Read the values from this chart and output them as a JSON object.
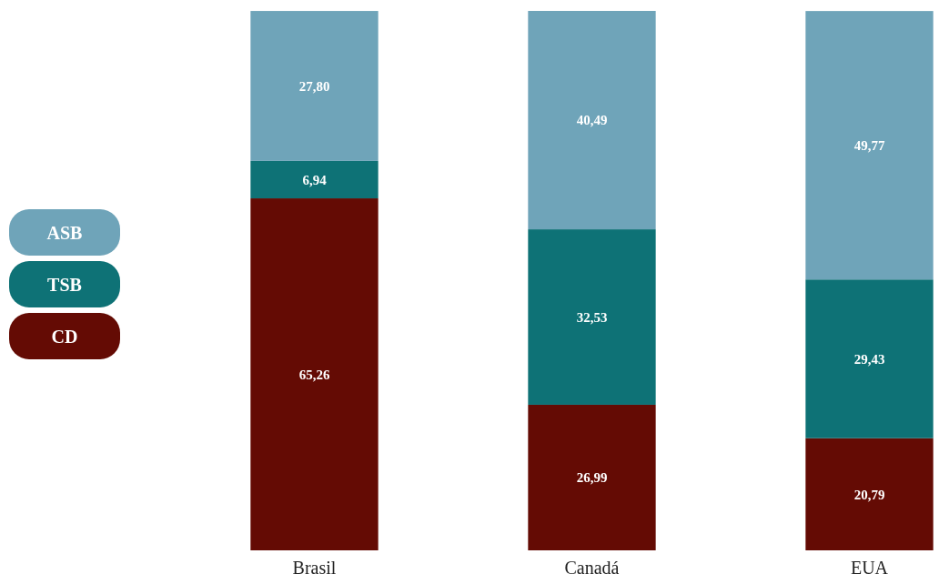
{
  "chart_data": {
    "type": "bar",
    "stacked": true,
    "categories": [
      "Brasil",
      "Canadá",
      "EUA"
    ],
    "ylim": [
      0,
      100.01
    ],
    "tick_labels": "x",
    "legend": "left",
    "series": [
      {
        "name": "CD",
        "color": "#640b04",
        "values": [
          65.26,
          26.99,
          20.79
        ],
        "value_labels": [
          "65,26",
          "26,99",
          "20,79"
        ]
      },
      {
        "name": "TSB",
        "color": "#0e7276",
        "values": [
          6.94,
          32.53,
          29.43
        ],
        "value_labels": [
          "6,94",
          "32,53",
          "29,43"
        ]
      },
      {
        "name": "ASB",
        "color": "#6fa4b9",
        "values": [
          27.8,
          40.49,
          49.77
        ],
        "value_labels": [
          "27,80",
          "40,49",
          "49,77"
        ]
      }
    ]
  }
}
